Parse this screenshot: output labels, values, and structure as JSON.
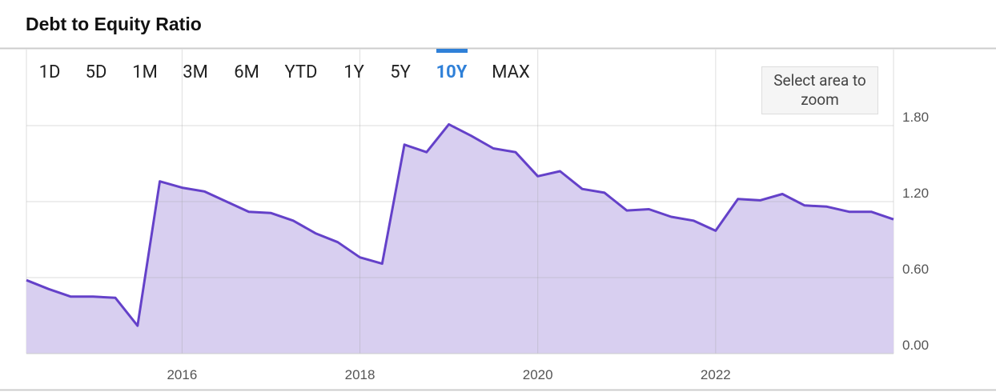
{
  "chart_data": {
    "type": "area",
    "title": "Debt to Equity Ratio",
    "x": [
      2014.25,
      2014.5,
      2014.75,
      2015,
      2015.25,
      2015.5,
      2015.75,
      2016,
      2016.25,
      2016.5,
      2016.75,
      2017,
      2017.25,
      2017.5,
      2017.75,
      2018,
      2018.25,
      2018.5,
      2018.75,
      2019,
      2019.25,
      2019.5,
      2019.75,
      2020,
      2020.25,
      2020.5,
      2020.75,
      2021,
      2021.25,
      2021.5,
      2021.75,
      2022,
      2022.25,
      2022.5,
      2022.75,
      2023,
      2023.25,
      2023.5,
      2023.75,
      2024
    ],
    "values": [
      0.58,
      0.51,
      0.45,
      0.45,
      0.44,
      0.22,
      1.36,
      1.31,
      1.28,
      1.2,
      1.12,
      1.11,
      1.05,
      0.95,
      0.88,
      0.76,
      0.71,
      1.65,
      1.59,
      1.81,
      1.72,
      1.62,
      1.59,
      1.4,
      1.44,
      1.3,
      1.27,
      1.13,
      1.14,
      1.08,
      1.05,
      0.97,
      1.22,
      1.21,
      1.26,
      1.17,
      1.16,
      1.12,
      1.12,
      1.06
    ],
    "color": "#6441c9",
    "fill": "#d8cff0",
    "xlim": [
      2014.25,
      2024
    ],
    "xticks": [
      2016,
      2018,
      2020,
      2022
    ],
    "ylim": [
      0,
      2.4
    ],
    "yticks": [
      {
        "value": 0,
        "label": "0.00"
      },
      {
        "value": 0.6,
        "label": "0.60"
      },
      {
        "value": 1.2,
        "label": "1.20"
      },
      {
        "value": 1.8,
        "label": "1.80"
      }
    ],
    "grid": true
  },
  "controls": {
    "ranges": [
      "1D",
      "5D",
      "1M",
      "3M",
      "6M",
      "YTD",
      "1Y",
      "5Y",
      "10Y",
      "MAX"
    ],
    "zoom_button": "Select area to zoom"
  }
}
